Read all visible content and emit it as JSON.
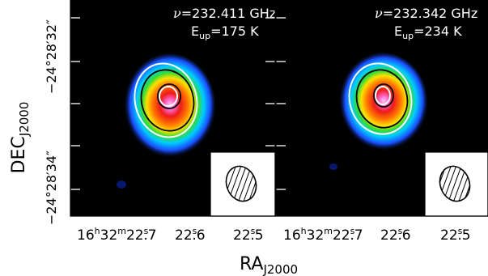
{
  "figure": {
    "colors": {
      "background": "#000000",
      "contour_outer": "#ffffff",
      "contour_mid": "#000000",
      "contour_inner": "#ffffff"
    },
    "ylabel": {
      "main": "DEC",
      "sub": "J2000"
    },
    "xlabel": {
      "main": "RA",
      "sub": "J2000"
    },
    "yticks": [
      {
        "value": "−24°28′32″",
        "deg": "−24",
        "arcmin": "28",
        "arcsec": "32"
      },
      {
        "value": "−24°28′34″",
        "deg": "−24",
        "arcmin": "28",
        "arcsec": "34"
      }
    ],
    "panels": [
      {
        "freq": {
          "nu": "ν",
          "eq": "=232.411 GHz"
        },
        "energy": {
          "e": "E",
          "sub": "up",
          "eq": "=175 K"
        },
        "xticks": [
          {
            "value": "16h32m22.7s",
            "h": "16",
            "m": "32",
            "s": "22",
            "frac": ".7"
          },
          {
            "value": "22.6s",
            "s": "22",
            "frac": ".6"
          },
          {
            "value": "22.5s",
            "s": "22",
            "frac": ".5"
          }
        ]
      },
      {
        "freq": {
          "nu": "ν",
          "eq": "=232.342 GHz"
        },
        "energy": {
          "e": "E",
          "sub": "up",
          "eq": "=234 K"
        },
        "xticks": [
          {
            "value": "16h32m22.7s",
            "h": "16",
            "m": "32",
            "s": "22",
            "frac": ".7"
          },
          {
            "value": "22.6s",
            "s": "22",
            "frac": ".6"
          },
          {
            "value": "22.5s",
            "s": "22",
            "frac": ".5"
          }
        ]
      }
    ],
    "beam_label": "synthesized-beam"
  }
}
